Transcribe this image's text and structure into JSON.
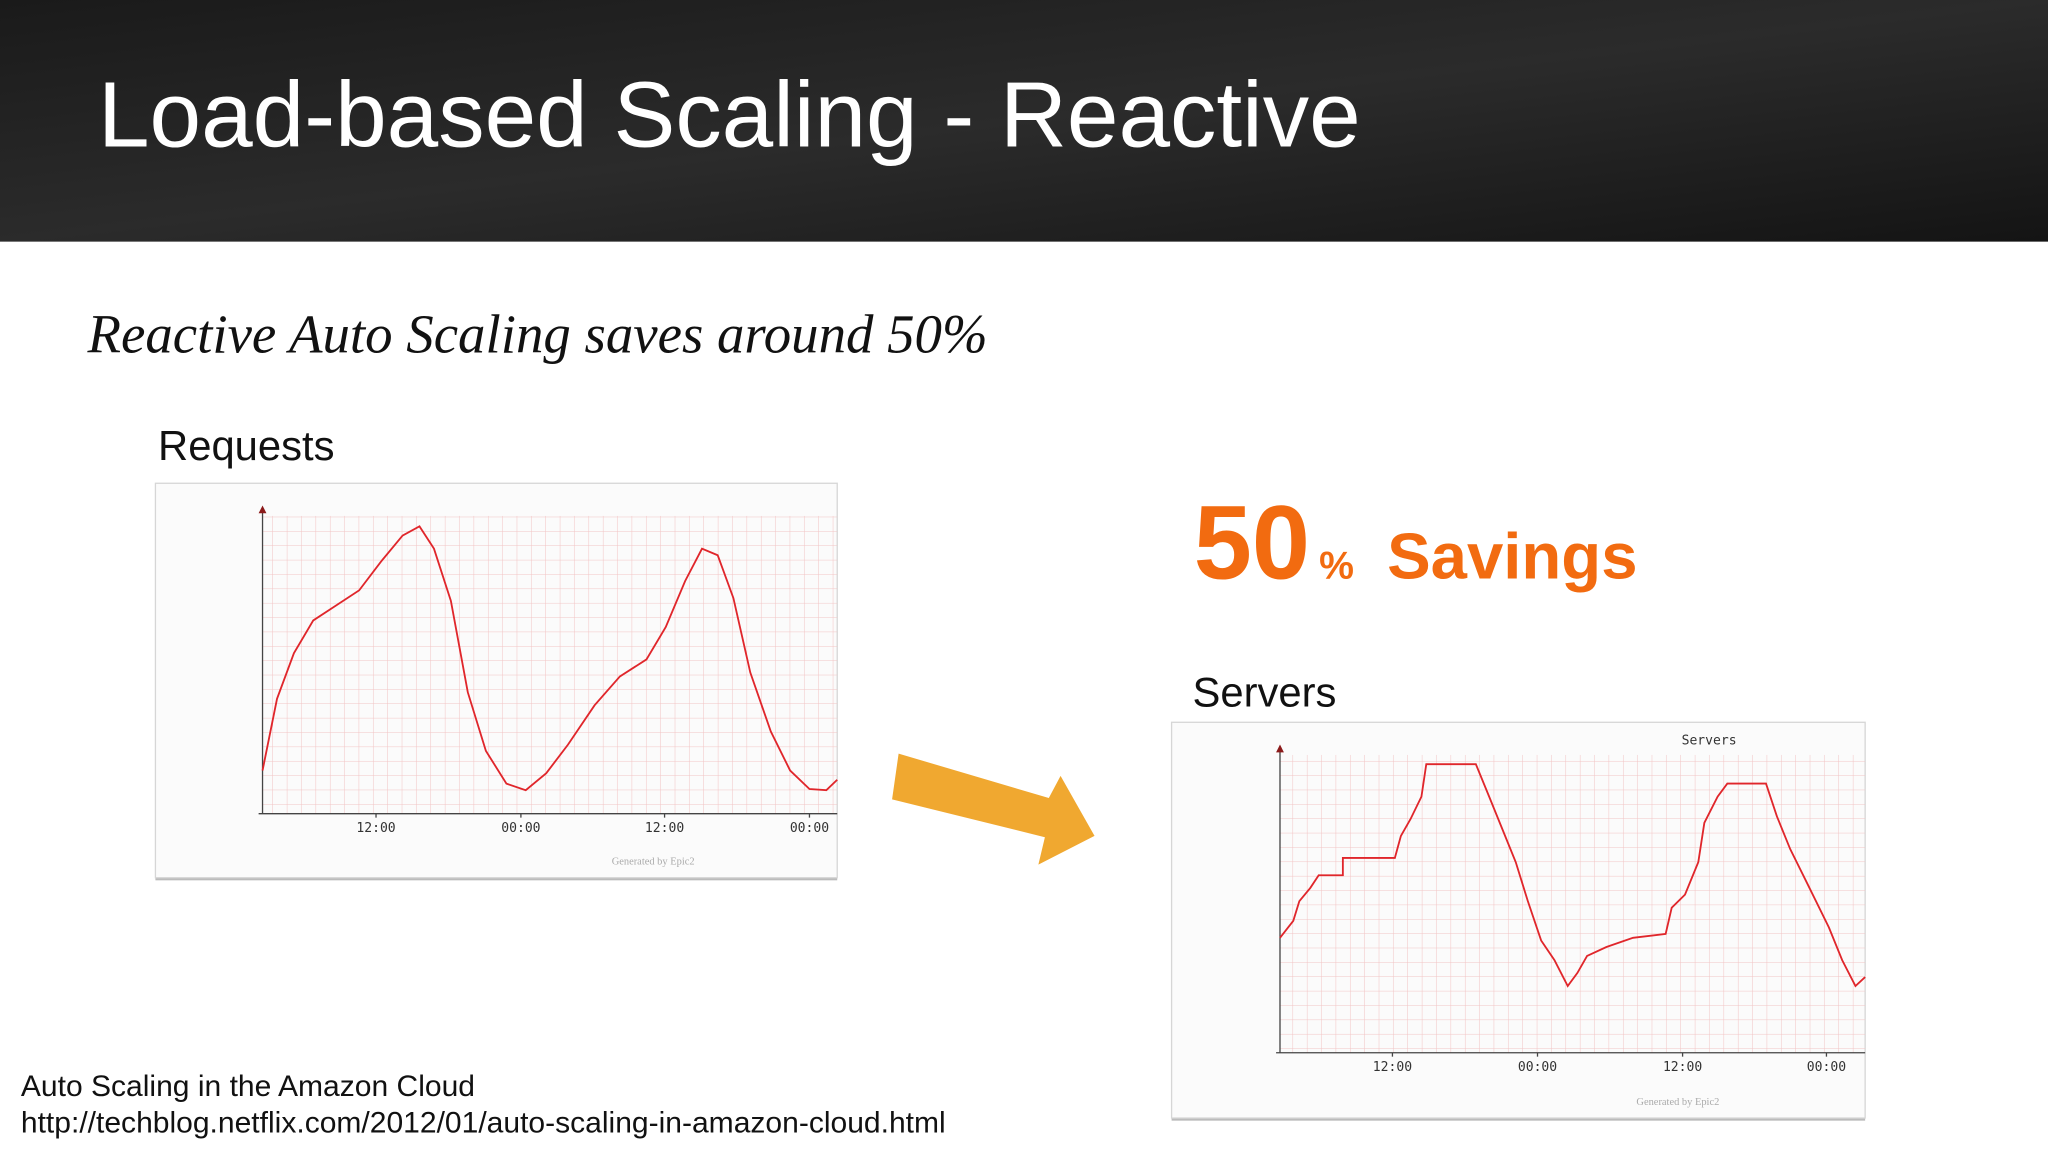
{
  "title": "Load-based Scaling - Reactive",
  "subtitle": "Reactive Auto Scaling saves around 50%",
  "savings": {
    "number": "50",
    "percent": "%",
    "label": "Savings"
  },
  "footnote": [
    "Auto Scaling in the Amazon Cloud",
    "http://techblog.netflix.com/2012/01/auto-scaling-in-amazon-cloud.html"
  ],
  "chart_data": [
    {
      "type": "line",
      "caption": "Requests",
      "color": "#e0262b",
      "credit": "Generated by Epic2",
      "xlim": [
        0,
        47.6
      ],
      "ylim": [
        0,
        100
      ],
      "xticks": [
        {
          "value": 9.4,
          "label": "12:00"
        },
        {
          "value": 21.4,
          "label": "00:00"
        },
        {
          "value": 33.3,
          "label": "12:00"
        },
        {
          "value": 45.3,
          "label": "00:00"
        }
      ],
      "x": [
        0,
        1.2,
        2.6,
        4.2,
        6.2,
        8.0,
        9.8,
        11.6,
        13.0,
        14.2,
        15.6,
        17.0,
        18.5,
        20.2,
        21.8,
        23.5,
        25.3,
        27.5,
        29.6,
        31.8,
        33.4,
        35.0,
        36.4,
        37.7,
        39.0,
        40.4,
        42.1,
        43.7,
        45.3,
        46.7,
        47.6
      ],
      "values": [
        14.5,
        38.6,
        53.9,
        64.9,
        70.2,
        75.0,
        84.6,
        93.4,
        96.5,
        89.0,
        71.5,
        40.8,
        21.1,
        10.1,
        7.9,
        13.6,
        23.2,
        36.4,
        46.1,
        51.8,
        62.7,
        78.1,
        89.0,
        86.8,
        72.4,
        47.4,
        27.6,
        14.5,
        8.3,
        7.9,
        11.4
      ]
    },
    {
      "type": "line",
      "caption": "Servers",
      "title": "Servers",
      "color": "#e0262b",
      "credit": "Generated by Epic2",
      "xlim": [
        0,
        48.4
      ],
      "ylim": [
        0,
        100
      ],
      "xticks": [
        {
          "value": 9.3,
          "label": "12:00"
        },
        {
          "value": 21.3,
          "label": "00:00"
        },
        {
          "value": 33.3,
          "label": "12:00"
        },
        {
          "value": 45.2,
          "label": "00:00"
        }
      ],
      "x": [
        0,
        1.1,
        1.6,
        2.5,
        3.2,
        5.2,
        5.2,
        9.5,
        10.0,
        10.8,
        11.7,
        12.1,
        16.2,
        17.3,
        18.4,
        19.5,
        20.5,
        21.6,
        22.7,
        23.8,
        24.6,
        25.4,
        27.0,
        29.2,
        31.9,
        32.4,
        33.5,
        34.6,
        35.1,
        36.2,
        37.0,
        40.2,
        41.1,
        42.2,
        43.8,
        45.4,
        46.5,
        47.6,
        48.4
      ],
      "values": [
        38.6,
        44.3,
        50.9,
        55.3,
        59.6,
        59.6,
        65.4,
        65.4,
        72.8,
        78.5,
        86.0,
        96.9,
        96.9,
        86.0,
        75.0,
        64.0,
        50.9,
        37.7,
        31.1,
        22.4,
        26.8,
        32.5,
        35.5,
        38.6,
        39.9,
        48.7,
        53.1,
        64.0,
        77.2,
        86.0,
        90.4,
        90.4,
        79.4,
        68.4,
        55.3,
        42.1,
        31.1,
        22.4,
        25.4
      ]
    }
  ]
}
